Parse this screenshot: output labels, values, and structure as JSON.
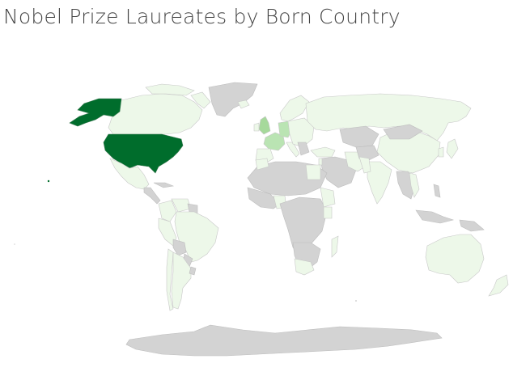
{
  "title": "Nobel Prize Laureates by Born Country",
  "map": {
    "type": "choropleth",
    "projection": "natural earth",
    "colors": {
      "no_data": "#d3d3d3",
      "low": "#edf8e9",
      "mid": "#bae4b3",
      "mid_high": "#a6d99b",
      "high": "#006d2c"
    },
    "highlighted": [
      {
        "country": "United States",
        "level": "high"
      },
      {
        "country": "United Kingdom",
        "level": "mid_high"
      },
      {
        "country": "Germany",
        "level": "mid"
      },
      {
        "country": "France",
        "level": "mid"
      }
    ]
  }
}
